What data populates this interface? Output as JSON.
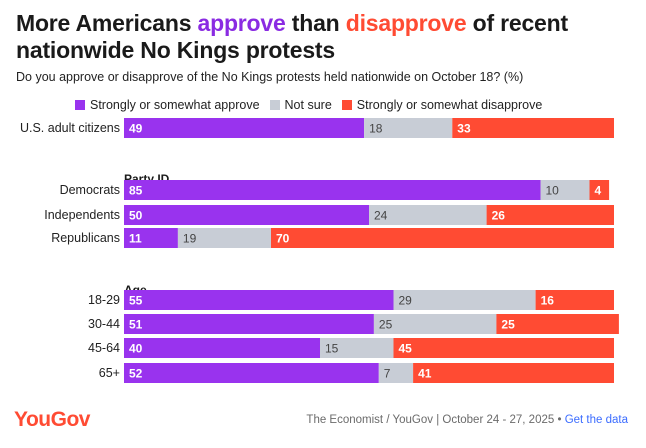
{
  "title": {
    "part1": "More Americans ",
    "approve": "approve",
    "part2": " than ",
    "disapprove": "disapprove",
    "part3": " of recent nationwide No Kings protests"
  },
  "subtitle": "Do you approve or disapprove of the No Kings protests held nationwide on October 18? (%)",
  "legend": [
    {
      "label": "Strongly or somewhat approve",
      "color": "#9933ee"
    },
    {
      "label": "Not sure",
      "color": "#c8cdd6"
    },
    {
      "label": "Strongly or somewhat disapprove",
      "color": "#ff4b33"
    }
  ],
  "footer": {
    "logo": "YouGov",
    "source": "The Economist / YouGov | October 24 - 27, 2025",
    "separator": "•",
    "link": "Get the data"
  },
  "chart_data": {
    "type": "bar",
    "stacked": true,
    "orientation": "horizontal",
    "xlim": [
      0,
      100
    ],
    "series_names": [
      "Strongly or somewhat approve",
      "Not sure",
      "Strongly or somewhat disapprove"
    ],
    "colors": [
      "#9933ee",
      "#c8cdd6",
      "#ff4b33"
    ],
    "groups": [
      {
        "heading": "",
        "rows": [
          {
            "label": "U.S. adult citizens",
            "values": [
              49,
              18,
              33
            ]
          }
        ]
      },
      {
        "heading": "Party ID",
        "rows": [
          {
            "label": "Democrats",
            "values": [
              85,
              10,
              4
            ]
          },
          {
            "label": "Independents",
            "values": [
              50,
              24,
              26
            ]
          },
          {
            "label": "Republicans",
            "values": [
              11,
              19,
              70
            ]
          }
        ]
      },
      {
        "heading": "Age",
        "rows": [
          {
            "label": "18-29",
            "values": [
              55,
              29,
              16
            ]
          },
          {
            "label": "30-44",
            "values": [
              51,
              25,
              25
            ]
          },
          {
            "label": "45-64",
            "values": [
              40,
              15,
              45
            ]
          },
          {
            "label": "65+",
            "values": [
              52,
              7,
              41
            ]
          }
        ]
      }
    ]
  }
}
